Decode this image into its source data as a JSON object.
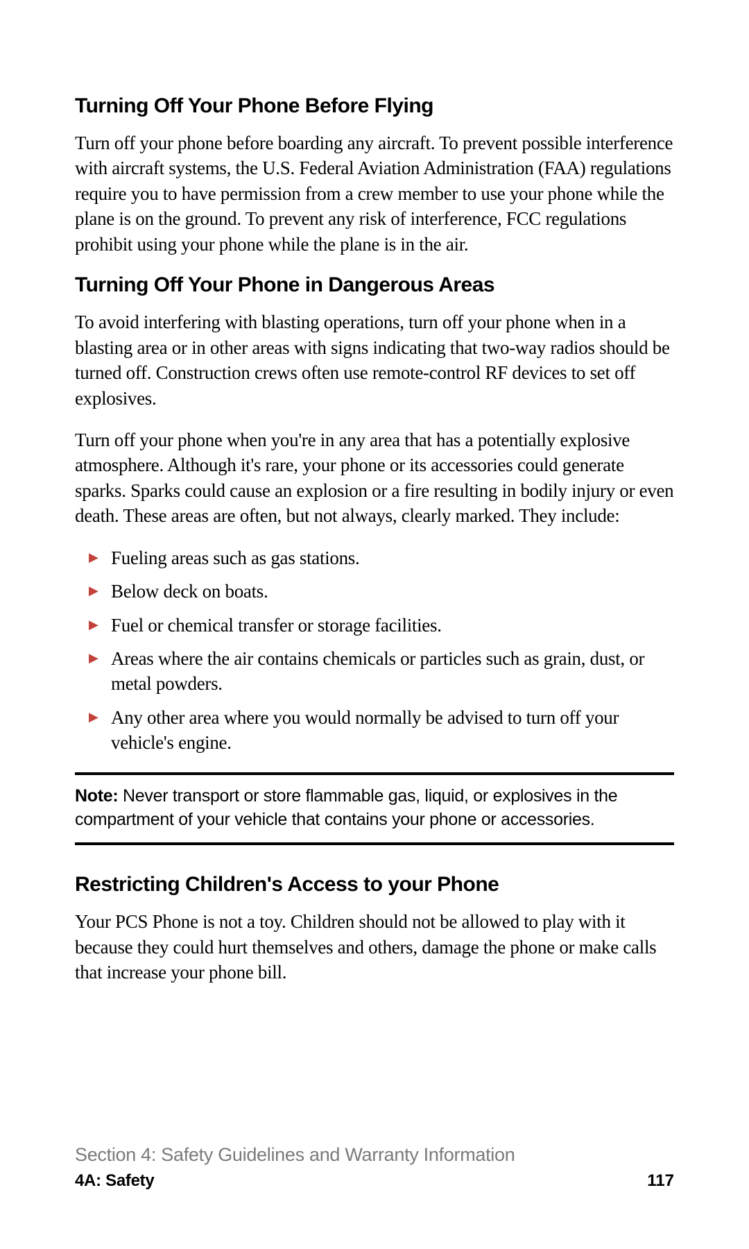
{
  "sections": [
    {
      "heading": "Turning Off Your Phone Before Flying",
      "paragraphs": [
        "Turn off your phone before boarding any aircraft. To prevent possible interference with aircraft systems, the U.S. Federal Aviation Administration (FAA) regulations require you to have permission from a crew member to use your phone while the plane is on the ground. To prevent any risk of interference, FCC regulations prohibit using your phone while the plane is in the air."
      ]
    },
    {
      "heading": "Turning Off Your Phone in Dangerous Areas",
      "paragraphs": [
        "To avoid interfering with blasting operations, turn off your phone when in a blasting area or in other areas with signs indicating that two-way radios should be turned off. Construction crews often use remote-control RF devices to set off explosives.",
        "Turn off your phone when you're in any area that has a potentially explosive atmosphere. Although it's rare, your phone or its accessories could generate sparks. Sparks could cause an explosion or a fire resulting in bodily injury or even death. These areas are often, but not always, clearly marked. They include:"
      ],
      "bullets": [
        "Fueling areas such as gas stations.",
        "Below deck on boats.",
        "Fuel or chemical transfer or storage facilities.",
        "Areas where the air contains chemicals or particles such as grain, dust, or metal powders.",
        "Any other area where you would normally be advised to turn off your vehicle's engine."
      ]
    }
  ],
  "note": {
    "label": "Note:",
    "text": " Never transport or store flammable gas, liquid, or explosives in the compartment of your vehicle that contains your phone or accessories."
  },
  "sections_after": [
    {
      "heading": "Restricting Children's Access to your Phone",
      "paragraphs": [
        "Your PCS Phone is not a toy. Children should not be allowed to play with it because they could hurt themselves and others, damage the phone or make calls that increase your phone bill."
      ]
    }
  ],
  "footer": {
    "section": "Section 4: Safety Guidelines and Warranty Information",
    "sub": "4A: Safety",
    "page": "117"
  },
  "colors": {
    "bullet_marker": "#c2413a",
    "footer_section_gray": "#7a7a7a",
    "text": "#000000",
    "background": "#ffffff"
  },
  "typography": {
    "heading_family": "Arial/Helvetica condensed",
    "heading_size_pt": 22,
    "heading_weight": 900,
    "body_family": "Georgia/serif",
    "body_size_pt": 20,
    "note_family": "Arial/Helvetica condensed",
    "note_size_pt": 19
  }
}
